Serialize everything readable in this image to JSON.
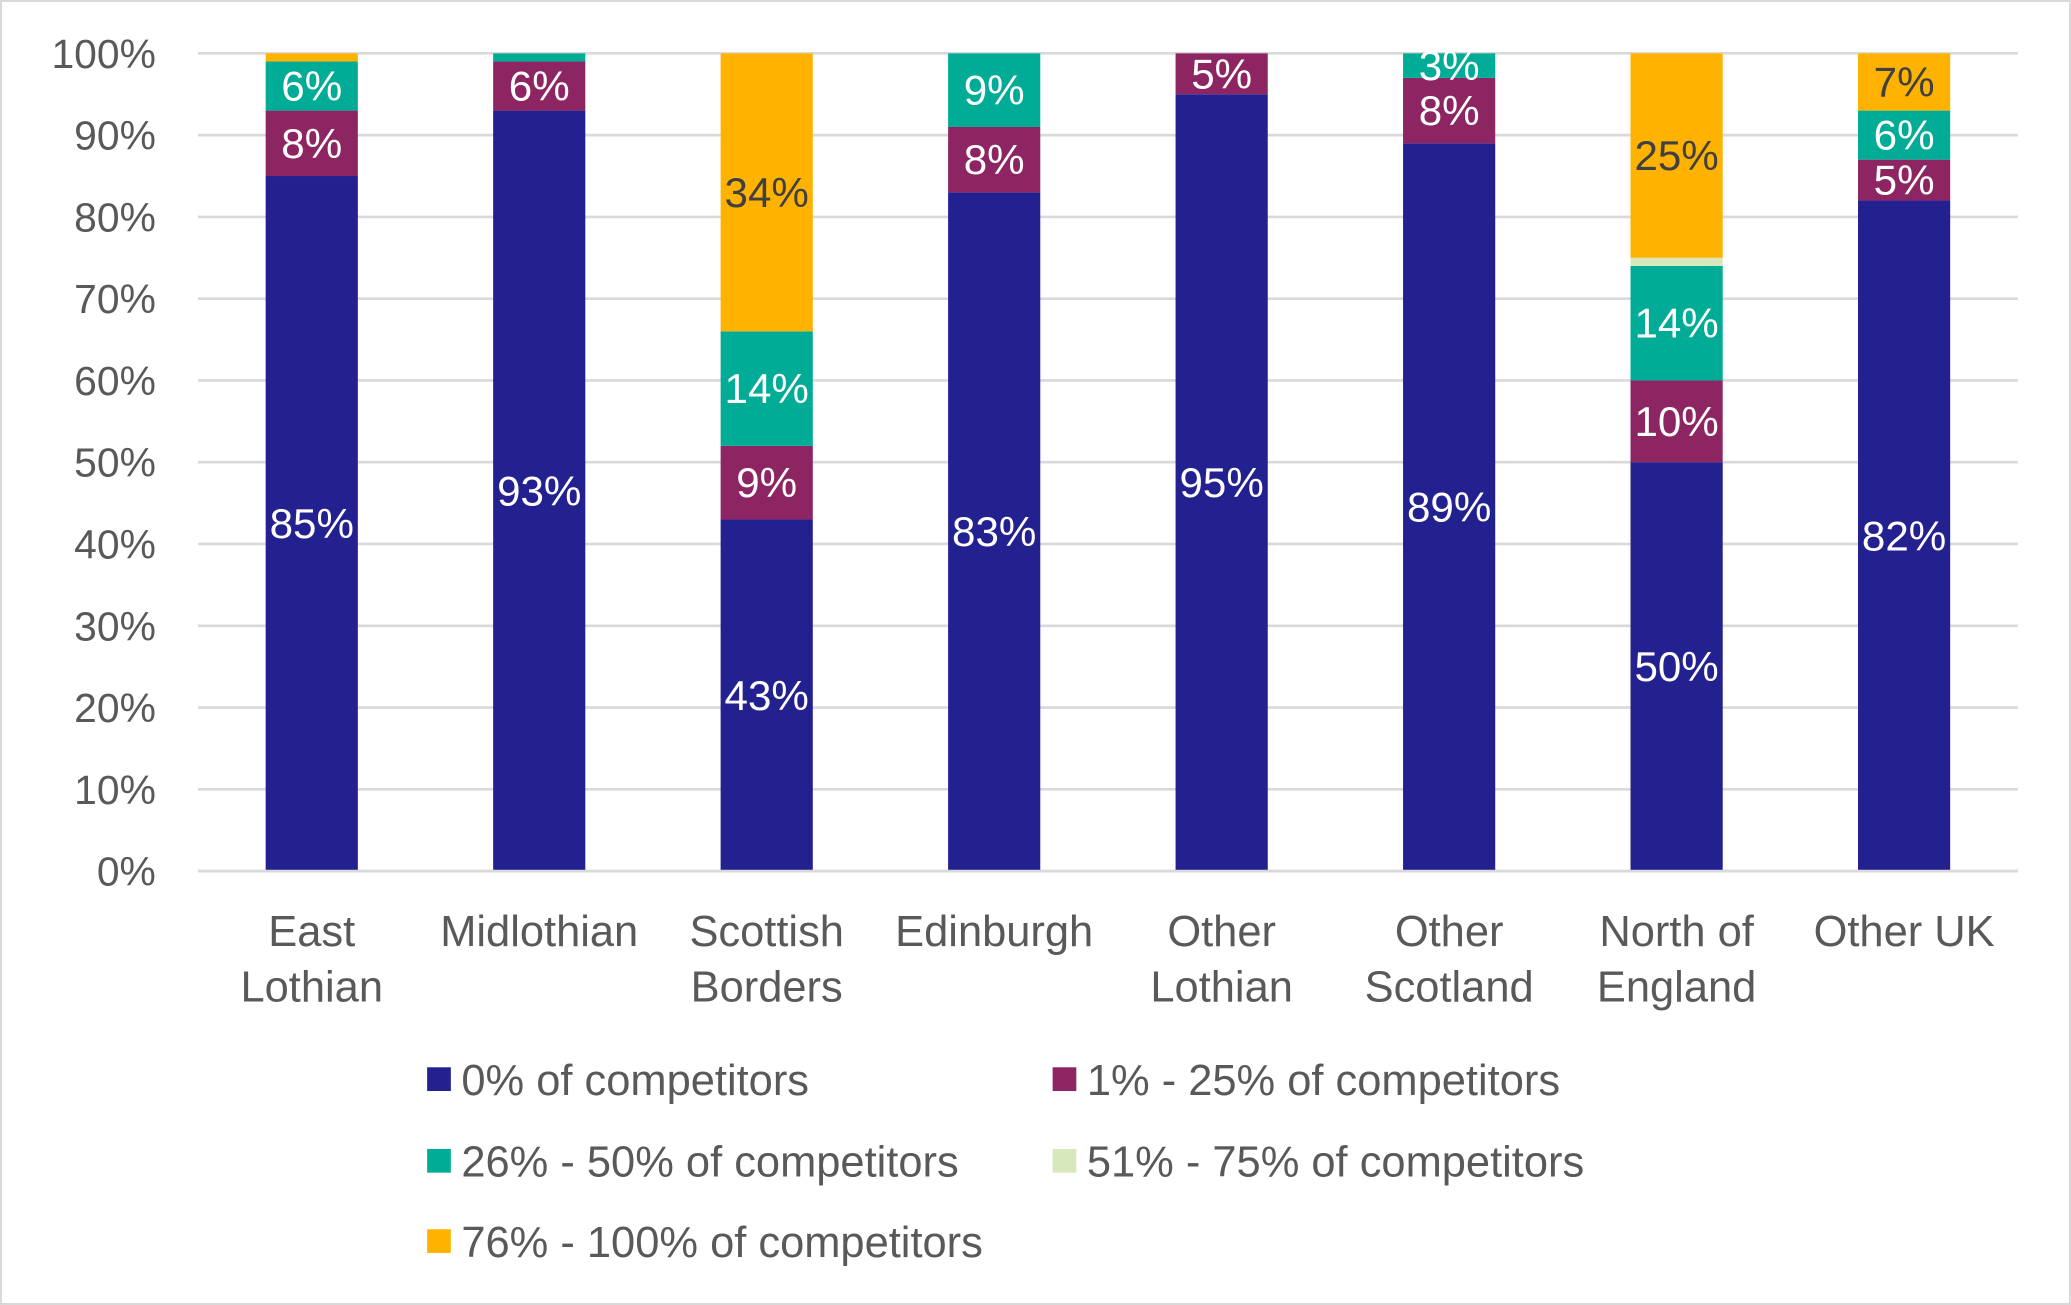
{
  "chart_data": {
    "type": "bar",
    "stacked": true,
    "title": "",
    "xlabel": "",
    "ylabel": "",
    "ylim": [
      0,
      100
    ],
    "yticks": [
      "0%",
      "10%",
      "20%",
      "30%",
      "40%",
      "50%",
      "60%",
      "70%",
      "80%",
      "90%",
      "100%"
    ],
    "grid": true,
    "legend_position": "bottom",
    "categories": [
      [
        "East",
        "Lothian"
      ],
      [
        "Midlothian"
      ],
      [
        "Scottish",
        "Borders"
      ],
      [
        "Edinburgh"
      ],
      [
        "Other",
        "Lothian"
      ],
      [
        "Other",
        "Scotland"
      ],
      [
        "North of",
        "England"
      ],
      [
        "Other UK"
      ]
    ],
    "series": [
      {
        "name": "0% of competitors",
        "color": "#232090",
        "label_color": "#ffffff",
        "values": [
          85,
          93,
          43,
          83,
          95,
          89,
          50,
          82
        ],
        "labels": [
          "85%",
          "93%",
          "43%",
          "83%",
          "95%",
          "89%",
          "50%",
          "82%"
        ]
      },
      {
        "name": "1% - 25% of competitors",
        "color": "#8e2563",
        "label_color": "#ffffff",
        "values": [
          8,
          6,
          9,
          8,
          5,
          8,
          10,
          5
        ],
        "labels": [
          "8%",
          "6%",
          "9%",
          "8%",
          "5%",
          "8%",
          "10%",
          "5%"
        ]
      },
      {
        "name": "26% - 50% of competitors",
        "color": "#00ac96",
        "label_color": "#ffffff",
        "values": [
          6,
          1,
          14,
          9,
          0,
          3,
          14,
          6
        ],
        "labels": [
          "6%",
          null,
          "14%",
          "9%",
          null,
          "3%",
          "14%",
          "6%"
        ]
      },
      {
        "name": "51% - 75% of competitors",
        "color": "#d7e8bc",
        "label_color": "#404040",
        "values": [
          0,
          0,
          0,
          0,
          0,
          0,
          1,
          0
        ],
        "labels": [
          null,
          null,
          null,
          null,
          null,
          null,
          null,
          null
        ]
      },
      {
        "name": "76% - 100% of competitors",
        "color": "#ffb300",
        "label_color": "#404040",
        "values": [
          1,
          0,
          34,
          0,
          0,
          0,
          25,
          7
        ],
        "labels": [
          null,
          null,
          "34%",
          null,
          null,
          null,
          "25%",
          "7%"
        ]
      }
    ]
  }
}
